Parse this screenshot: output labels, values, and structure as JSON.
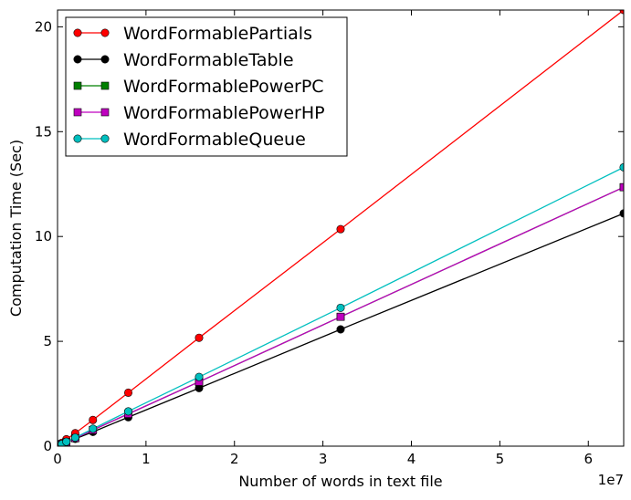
{
  "chart_data": {
    "type": "line",
    "xlabel": "Number of words in text file",
    "ylabel": "Computation Time (Sec)",
    "x_multiplier_label": "1e7",
    "xlim": [
      0,
      6.4
    ],
    "ylim": [
      0,
      20.8
    ],
    "x_ticks": [
      0,
      1,
      2,
      3,
      4,
      5,
      6
    ],
    "x_tick_labels": [
      "0",
      "1",
      "2",
      "3",
      "4",
      "5",
      "6"
    ],
    "y_ticks": [
      0,
      5,
      10,
      15,
      20
    ],
    "y_tick_labels": [
      "0",
      "5",
      "10",
      "15",
      "20"
    ],
    "grid": false,
    "legend_position": "top-left",
    "x": [
      0.0125,
      0.025,
      0.05,
      0.1,
      0.2,
      0.4,
      0.8,
      1.6,
      3.2,
      6.4
    ],
    "series": [
      {
        "name": "WordFormablePartials",
        "color": "#ff0000",
        "marker": "circle",
        "values": [
          0.04,
          0.08,
          0.16,
          0.33,
          0.62,
          1.25,
          2.55,
          5.17,
          10.35,
          20.8
        ]
      },
      {
        "name": "WordFormableTable",
        "color": "#000000",
        "marker": "circle",
        "values": [
          0.02,
          0.04,
          0.09,
          0.18,
          0.35,
          0.68,
          1.38,
          2.77,
          5.57,
          11.1
        ]
      },
      {
        "name": "WordFormablePowerPC",
        "color": "#008000",
        "marker": "square",
        "values": [
          0.02,
          0.05,
          0.1,
          0.19,
          0.38,
          0.77,
          1.54,
          3.07,
          6.17,
          12.35
        ]
      },
      {
        "name": "WordFormablePowerHP",
        "color": "#bf00bf",
        "marker": "square",
        "values": [
          0.02,
          0.05,
          0.1,
          0.19,
          0.38,
          0.77,
          1.54,
          3.07,
          6.17,
          12.35
        ]
      },
      {
        "name": "WordFormableQueue",
        "color": "#00bfbf",
        "marker": "circle",
        "values": [
          0.02,
          0.05,
          0.1,
          0.21,
          0.41,
          0.83,
          1.66,
          3.3,
          6.6,
          13.3
        ]
      }
    ]
  }
}
